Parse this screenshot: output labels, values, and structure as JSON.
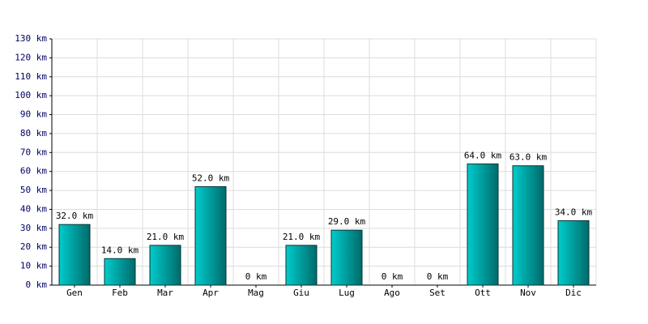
{
  "chart_data": {
    "type": "bar",
    "categories": [
      "Gen",
      "Feb",
      "Mar",
      "Apr",
      "Mag",
      "Giu",
      "Lug",
      "Ago",
      "Set",
      "Ott",
      "Nov",
      "Dic"
    ],
    "values": [
      32,
      14,
      21,
      52,
      0,
      21,
      29,
      0,
      0,
      64,
      63,
      34
    ],
    "value_labels": [
      "32.0 km",
      "14.0 km",
      "21.0 km",
      "52.0 km",
      "0 km",
      "21.0 km",
      "29.0 km",
      "0 km",
      "0 km",
      "64.0 km",
      "63.0 km",
      "34.0 km"
    ],
    "color": "#00cccc",
    "ylim": [
      0,
      130
    ],
    "yticks": [
      {
        "value": 0,
        "label": "0 km"
      },
      {
        "value": 10,
        "label": "10 km"
      },
      {
        "value": 20,
        "label": "20 km"
      },
      {
        "value": 30,
        "label": "30 km"
      },
      {
        "value": 40,
        "label": "40 km"
      },
      {
        "value": 50,
        "label": "50 km"
      },
      {
        "value": 60,
        "label": "60 km"
      },
      {
        "value": 70,
        "label": "70 km"
      },
      {
        "value": 80,
        "label": "80 km"
      },
      {
        "value": 90,
        "label": "90 km"
      },
      {
        "value": 100,
        "label": "100 km"
      },
      {
        "value": 110,
        "label": "110 km"
      },
      {
        "value": 120,
        "label": "120 km"
      },
      {
        "value": 130,
        "label": "130 km"
      }
    ],
    "grid": true
  }
}
